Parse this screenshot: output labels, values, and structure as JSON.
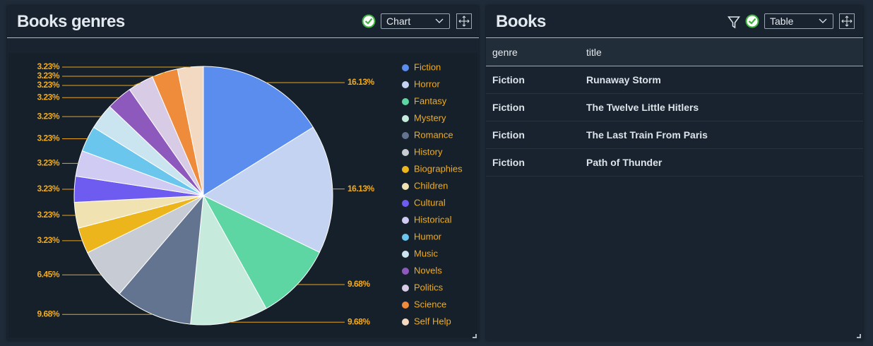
{
  "left_panel": {
    "title": "Books genres",
    "view": "Chart"
  },
  "chart_data": {
    "type": "pie",
    "categories": [
      "Fiction",
      "Horror",
      "Fantasy",
      "Mystery",
      "Romance",
      "History",
      "Biographies",
      "Children",
      "Cultural",
      "Historical",
      "Humor",
      "Music",
      "Novels",
      "Politics",
      "Science",
      "Self Help"
    ],
    "values": [
      16.13,
      16.13,
      9.68,
      9.68,
      9.68,
      6.45,
      3.23,
      3.23,
      3.23,
      3.23,
      3.23,
      3.23,
      3.23,
      3.23,
      3.23,
      3.23
    ],
    "value_labels": [
      "16.13%",
      "16.13%",
      "9.68%",
      "9.68%",
      "9.68%",
      "6.45%",
      "3.23%",
      "3.23%",
      "3.23%",
      "3.23%",
      "3.23%",
      "3.23%",
      "3.23%",
      "3.23%",
      "3.23%",
      "3.23%"
    ],
    "colors": [
      "#5b8def",
      "#c5d3f3",
      "#5dd6a3",
      "#c6ebdd",
      "#637491",
      "#c7ccd4",
      "#ecb51c",
      "#f0e3b1",
      "#6e5bf0",
      "#cfcbf2",
      "#6bc6ee",
      "#cbe5f0",
      "#8e59bd",
      "#d7cbe5",
      "#ef8c3b",
      "#f3d9c2"
    ],
    "legend": "right"
  },
  "right_panel": {
    "title": "Books",
    "view": "Table"
  },
  "table": {
    "columns": [
      "genre",
      "title"
    ],
    "rows": [
      [
        "Fiction",
        "Runaway Storm"
      ],
      [
        "Fiction",
        "The Twelve Little Hitlers"
      ],
      [
        "Fiction",
        "The Last Train From Paris"
      ],
      [
        "Fiction",
        "Path of Thunder"
      ]
    ]
  }
}
